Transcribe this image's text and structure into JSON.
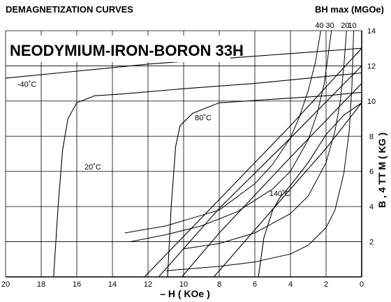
{
  "chart_data": {
    "type": "line",
    "header_left": "DEMAGNETIZATION CURVES",
    "header_right": "BH max (MGOe)",
    "title": "NEODYMIUM-IRON-BORON 33H",
    "xlabel": "– H ( KOe )",
    "ylabel": "B , 4 TT M ( KG )",
    "xlim": [
      20,
      0
    ],
    "ylim": [
      0,
      14
    ],
    "x_ticks": [
      "20",
      "18",
      "16",
      "14",
      "12",
      "10",
      "8",
      "6",
      "4",
      "2",
      "0"
    ],
    "y_ticks": [
      "2",
      "4",
      "6",
      "8",
      "10",
      "12",
      "14"
    ],
    "bhmax_ticks": [
      "40",
      "30",
      "20",
      "10"
    ],
    "grid": true,
    "series": [
      {
        "name": "-40˚C",
        "intrinsic": [
          [
            20,
            11.3
          ],
          [
            16,
            11.7
          ],
          [
            12,
            12.1
          ],
          [
            8,
            12.4
          ],
          [
            4,
            12.7
          ],
          [
            0,
            13.0
          ]
        ],
        "normal": [
          [
            12.2,
            0
          ],
          [
            8,
            4.4
          ],
          [
            4,
            8.6
          ],
          [
            0,
            13.0
          ]
        ]
      },
      {
        "name": "20˚C",
        "intrinsic": [
          [
            17.3,
            0
          ],
          [
            17.05,
            4.0
          ],
          [
            16.8,
            7.2
          ],
          [
            16.5,
            9.0
          ],
          [
            16.0,
            9.9
          ],
          [
            15.0,
            10.3
          ],
          [
            13.5,
            10.4
          ],
          [
            10,
            10.7
          ],
          [
            6,
            11.0
          ],
          [
            3,
            11.3
          ],
          [
            0,
            11.6
          ]
        ],
        "normal": [
          [
            11.4,
            0
          ],
          [
            8,
            3.9
          ],
          [
            4,
            7.9
          ],
          [
            0,
            12.0
          ]
        ]
      },
      {
        "name": "80˚C",
        "intrinsic": [
          [
            10.9,
            0
          ],
          [
            10.7,
            4.0
          ],
          [
            10.45,
            7.4
          ],
          [
            10.2,
            8.6
          ],
          [
            9.5,
            9.3
          ],
          [
            8,
            9.9
          ],
          [
            5,
            10.1
          ],
          [
            2,
            10.3
          ],
          [
            0,
            10.5
          ]
        ],
        "normal": [
          [
            10.1,
            0
          ],
          [
            8,
            2.5
          ],
          [
            4,
            6.8
          ],
          [
            0,
            11.0
          ]
        ]
      },
      {
        "name": "140˚C",
        "intrinsic": [
          [
            5.8,
            0
          ],
          [
            5.5,
            2.2
          ],
          [
            5.0,
            3.8
          ],
          [
            4.6,
            4.5
          ],
          [
            4.0,
            5.2
          ],
          [
            3.0,
            6.5
          ],
          [
            2.0,
            8.1
          ],
          [
            1.0,
            9.2
          ],
          [
            0,
            9.9
          ]
        ],
        "normal": [
          [
            8.3,
            0
          ],
          [
            4,
            5.0
          ],
          [
            2,
            7.3
          ],
          [
            0,
            9.9
          ]
        ]
      }
    ],
    "bhmax_curves": [
      {
        "label": "40",
        "points": [
          [
            13.3,
            2.5
          ],
          [
            11,
            2.9
          ],
          [
            8,
            3.8
          ],
          [
            6,
            5.3
          ],
          [
            5,
            6.4
          ],
          [
            4,
            7.9
          ],
          [
            3.5,
            9.1
          ],
          [
            3.0,
            10.6
          ],
          [
            2.6,
            12.2
          ],
          [
            2.3,
            14.0
          ]
        ]
      },
      {
        "label": "30",
        "points": [
          [
            13.0,
            2.0
          ],
          [
            11,
            2.4
          ],
          [
            9,
            2.9
          ],
          [
            7,
            3.7
          ],
          [
            5,
            5.0
          ],
          [
            4,
            6.0
          ],
          [
            3,
            7.8
          ],
          [
            2.5,
            9.3
          ],
          [
            2.1,
            11.0
          ],
          [
            1.9,
            12.5
          ],
          [
            1.7,
            14.0
          ]
        ]
      },
      {
        "label": "20",
        "points": [
          [
            10,
            1.6
          ],
          [
            8,
            1.9
          ],
          [
            6,
            2.5
          ],
          [
            4,
            3.6
          ],
          [
            3,
            4.6
          ],
          [
            2,
            6.5
          ],
          [
            1.5,
            8.3
          ],
          [
            1.2,
            10.0
          ],
          [
            1.0,
            12.0
          ],
          [
            0.85,
            14.0
          ]
        ]
      },
      {
        "label": "10",
        "points": [
          [
            11,
            0.35
          ],
          [
            8,
            0.6
          ],
          [
            6,
            0.85
          ],
          [
            4,
            1.3
          ],
          [
            3,
            1.8
          ],
          [
            2,
            2.8
          ],
          [
            1.5,
            3.8
          ],
          [
            1.0,
            5.9
          ],
          [
            0.7,
            8.3
          ],
          [
            0.55,
            10.8
          ],
          [
            0.45,
            14.0
          ]
        ]
      }
    ]
  }
}
